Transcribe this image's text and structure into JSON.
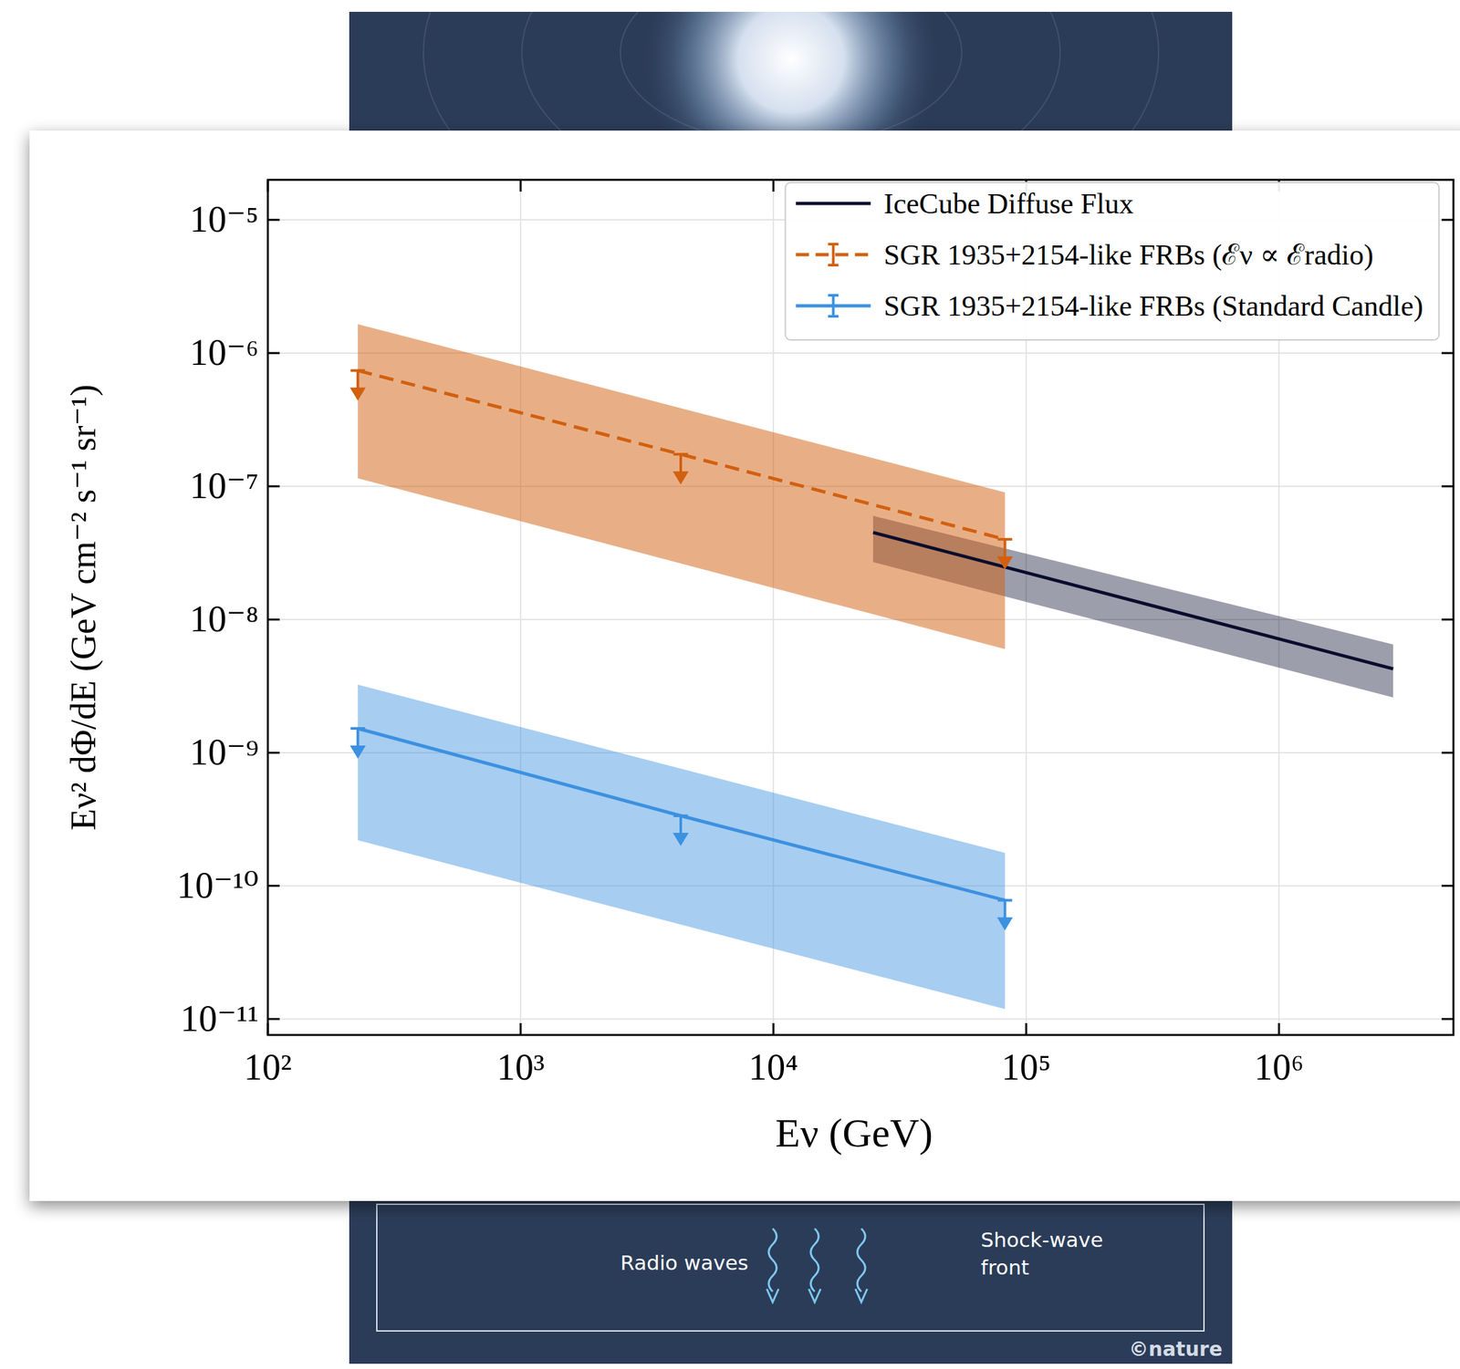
{
  "chart_data": {
    "type": "line",
    "x_label": "Eν (GeV)",
    "y_label": "Eν² dΦ/dE (GeV cm⁻² s⁻¹ sr⁻¹)",
    "log": true,
    "grid": true,
    "legend": "upper right",
    "xlim": [
      100,
      4900000
    ],
    "ylim": [
      7.6e-12,
      2e-05
    ],
    "xticks": [
      {
        "value": 100,
        "label": "10²"
      },
      {
        "value": 1000,
        "label": "10³"
      },
      {
        "value": 10000,
        "label": "10⁴"
      },
      {
        "value": 100000,
        "label": "10⁵"
      },
      {
        "value": 1000000,
        "label": "10⁶"
      }
    ],
    "yticks": [
      {
        "value": 1e-11,
        "label": "10⁻¹¹"
      },
      {
        "value": 1e-10,
        "label": "10⁻¹⁰"
      },
      {
        "value": 1e-09,
        "label": "10⁻⁹"
      },
      {
        "value": 1e-08,
        "label": "10⁻⁸"
      },
      {
        "value": 1e-07,
        "label": "10⁻⁷"
      },
      {
        "value": 1e-06,
        "label": "10⁻⁶"
      },
      {
        "value": 1e-05,
        "label": "10⁻⁵"
      }
    ],
    "series": [
      {
        "name": "IceCube Diffuse Flux",
        "color": "#0b0d2e",
        "line_style": "solid",
        "marker": "none",
        "x": [
          24800,
          2830000
        ],
        "values": [
          4.5e-08,
          4.26e-09
        ],
        "band": {
          "x": [
            24800,
            2830000
          ],
          "lower": [
            2.7e-08,
            2.6e-09
          ],
          "upper": [
            6e-08,
            6.5e-09
          ]
        }
      },
      {
        "name": "SGR 1935+2154-like FRBs (ℰν ∝ ℰradio)",
        "color": "#d2600f",
        "line_style": "dashed",
        "marker": "upper-limit",
        "x": [
          227,
          4300,
          82400
        ],
        "values": [
          7.4e-07,
          1.74e-07,
          4e-08
        ],
        "band": {
          "x": [
            227,
            82400
          ],
          "lower": [
            1.15e-07,
            6e-09
          ],
          "upper": [
            1.65e-06,
            9e-08
          ]
        }
      },
      {
        "name": "SGR 1935+2154-like FRBs (Standard Candle)",
        "color": "#3c91e0",
        "line_style": "solid",
        "marker": "upper-limit",
        "x": [
          227,
          4300,
          82400
        ],
        "values": [
          1.52e-09,
          3.36e-10,
          7.8e-11
        ],
        "band": {
          "x": [
            227,
            82400
          ],
          "lower": [
            2.2e-10,
            1.19e-11
          ],
          "upper": [
            3.24e-09,
            1.77e-10
          ]
        }
      }
    ]
  },
  "illustration": {
    "labels": [
      "Radio waves",
      "Shock-wave front"
    ],
    "credit": "©nature"
  }
}
